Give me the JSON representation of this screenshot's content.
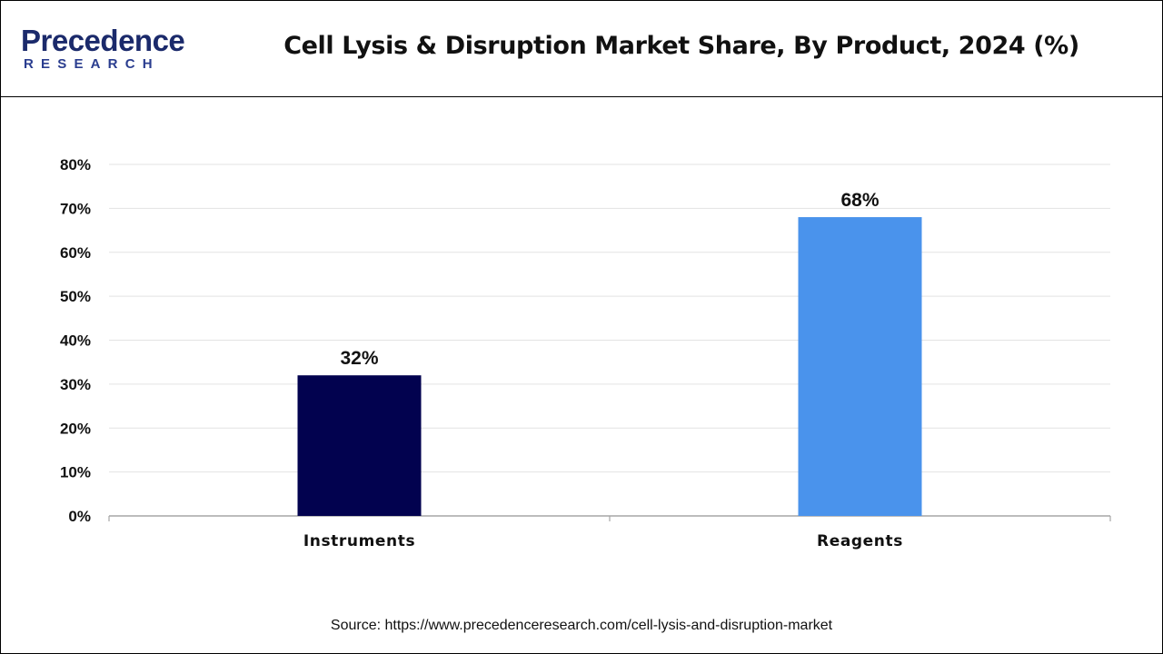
{
  "logo": {
    "line1": "Precedence",
    "line2": "RESEARCH"
  },
  "colors": {
    "instruments": "#02024f",
    "reagents": "#4a93ec",
    "gridline": "#e3e3e3",
    "axis": "#a6a6a6"
  },
  "chart_data": {
    "type": "bar",
    "title": "Cell Lysis & Disruption Market Share, By Product, 2024 (%)",
    "categories": [
      "Instruments",
      "Reagents"
    ],
    "values": [
      32,
      68
    ],
    "value_labels": [
      "32%",
      "68%"
    ],
    "xlabel": "",
    "ylabel": "",
    "ylim": [
      0,
      80
    ],
    "yticks": [
      0,
      10,
      20,
      30,
      40,
      50,
      60,
      70,
      80
    ],
    "ytick_labels": [
      "0%",
      "10%",
      "20%",
      "30%",
      "40%",
      "50%",
      "60%",
      "70%",
      "80%"
    ],
    "grid": true,
    "legend": "none"
  },
  "source": "Source: https://www.precedenceresearch.com/cell-lysis-and-disruption-market"
}
